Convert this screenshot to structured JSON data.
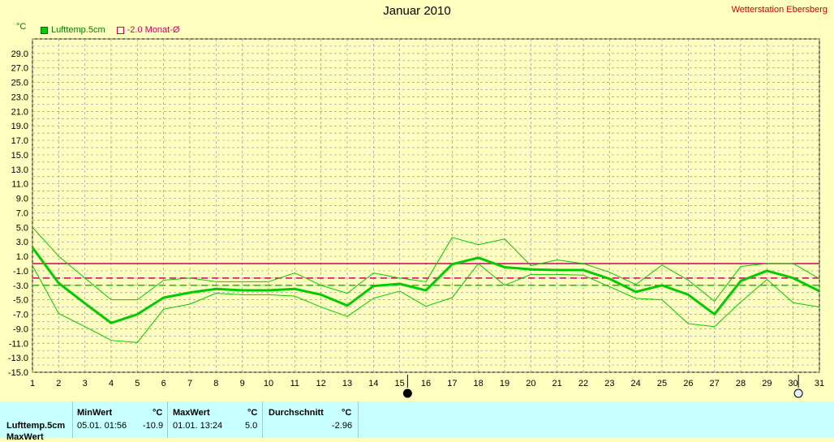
{
  "header": {
    "title": "Januar 2010",
    "station": "Wetterstation Ebersberg",
    "unit": "°C"
  },
  "legend": {
    "series_label": "Lufttemp.5cm",
    "monthly_label": "-2.0 Monat-Ø"
  },
  "colors": {
    "background": "#ffffc0",
    "grid": "#999999",
    "series": "#00cc00",
    "reference": "#cc0066",
    "table_bg": "#c8ffff"
  },
  "chart_data": {
    "type": "line",
    "title": "Januar 2010",
    "ylabel": "°C",
    "xlim": [
      1,
      31
    ],
    "ylim": [
      -15,
      31
    ],
    "y_ticks": [
      29.0,
      27.0,
      25.0,
      23.0,
      21.0,
      19.0,
      17.0,
      15.0,
      13.0,
      11.0,
      9.0,
      7.0,
      5.0,
      3.0,
      1.0,
      -1.0,
      -3.0,
      -5.0,
      -7.0,
      -9.0,
      -11.0,
      -13.0,
      -15.0
    ],
    "x_ticks": [
      1,
      2,
      3,
      4,
      5,
      6,
      7,
      8,
      9,
      10,
      11,
      12,
      13,
      14,
      15,
      16,
      17,
      18,
      19,
      20,
      21,
      22,
      23,
      24,
      25,
      26,
      27,
      28,
      29,
      30,
      31
    ],
    "grid": true,
    "x": [
      1,
      2,
      3,
      4,
      5,
      6,
      7,
      8,
      9,
      10,
      11,
      12,
      13,
      14,
      15,
      16,
      17,
      18,
      19,
      20,
      21,
      22,
      23,
      24,
      25,
      26,
      27,
      28,
      29,
      30,
      31
    ],
    "series": [
      {
        "name": "Lufttemp.5cm",
        "role": "mean",
        "values": [
          2.2,
          -2.7,
          -5.5,
          -8.2,
          -7.0,
          -4.7,
          -4.0,
          -3.5,
          -3.7,
          -3.7,
          -3.5,
          -4.3,
          -5.8,
          -3.1,
          -2.8,
          -3.7,
          -0.1,
          0.8,
          -0.5,
          -0.8,
          -0.9,
          -0.9,
          -2.1,
          -3.9,
          -3.0,
          -4.3,
          -7.0,
          -2.4,
          -1.0,
          -2.0,
          -3.8
        ]
      },
      {
        "role": "max",
        "values": [
          5.0,
          1.0,
          -2.0,
          -5.0,
          -5.0,
          -2.3,
          -2.0,
          -2.5,
          -2.5,
          -2.5,
          -1.3,
          -3.0,
          -4.1,
          -1.3,
          -2.0,
          -2.5,
          3.6,
          2.6,
          3.4,
          -0.3,
          0.5,
          0.0,
          -1.2,
          -2.9,
          -0.2,
          -2.3,
          -5.2,
          -0.4,
          0.0,
          0.0,
          -2.1
        ]
      },
      {
        "role": "min",
        "values": [
          -0.3,
          -6.9,
          -8.7,
          -10.6,
          -10.9,
          -6.3,
          -5.6,
          -4.1,
          -4.3,
          -4.3,
          -4.5,
          -6.0,
          -7.3,
          -4.8,
          -3.8,
          -5.9,
          -4.7,
          0.0,
          -3.0,
          -1.5,
          -1.5,
          -1.6,
          -3.2,
          -4.8,
          -5.0,
          -8.3,
          -8.7,
          -5.3,
          -2.2,
          -5.4,
          -6.0
        ]
      }
    ],
    "reference_lines": [
      {
        "value": 0.0,
        "style": "solid",
        "color": "#cc0066"
      },
      {
        "value": -2.0,
        "style": "dashed",
        "color": "#cc0066"
      },
      {
        "value": -3.0,
        "style": "dashed",
        "color": "#00cc00"
      }
    ],
    "markers": [
      {
        "x": 15.3,
        "style": "filled"
      },
      {
        "x": 30.2,
        "style": "hollow"
      }
    ]
  },
  "table": {
    "row_label": "Lufttemp.5cm",
    "row_label_cut": "MaxWert",
    "min_header": "MinWert",
    "min_unit": "°C",
    "min_time": "05.01.  01:56",
    "min_value": "-10.9",
    "max_header": "MaxWert",
    "max_unit": "°C",
    "max_time": "01.01.  13:24",
    "max_value": "5.0",
    "avg_header": "Durchschnitt",
    "avg_unit": "°C",
    "avg_value": "-2.96"
  }
}
